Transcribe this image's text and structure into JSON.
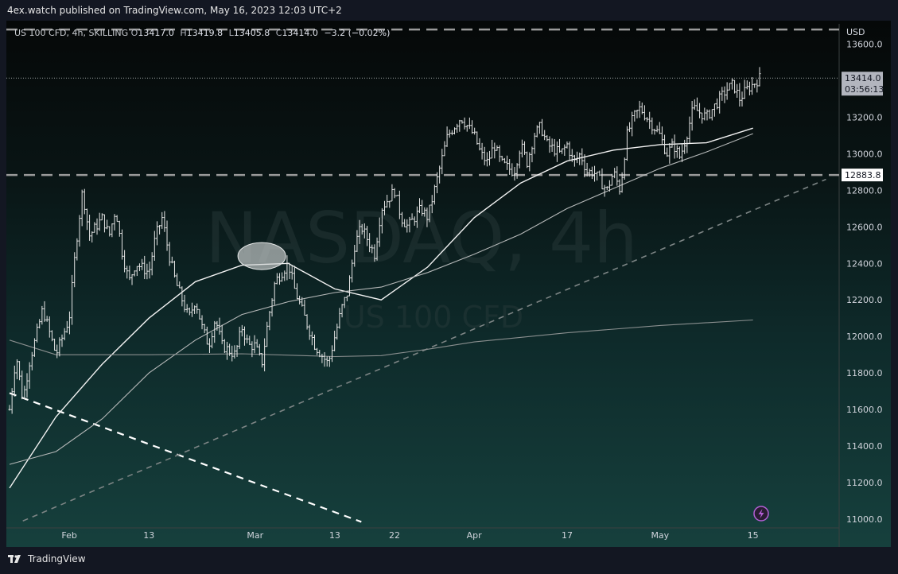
{
  "header": {
    "published": "4ex.watch published on TradingView.com, May 16, 2023 12:03 UTC+2"
  },
  "legend": {
    "symbol": "US 100 CFD, 4h, SKILLING",
    "o_label": "O",
    "o": "13417.0",
    "h_label": "H",
    "h": "13419.8",
    "l_label": "L",
    "l": "13405.8",
    "c_label": "C",
    "c": "13414.0",
    "change": "−3.2 (−0.02%)"
  },
  "watermark": {
    "line1": "NASDAQ, 4h",
    "line2": "US 100 CFD"
  },
  "footer": {
    "brand": "TradingView"
  },
  "colors": {
    "candle": "#e6e6e6",
    "ma_fast": "#f2f2f2",
    "ma_mid": "#b5b8b8",
    "ma_slow": "#8a8f8f",
    "level_line": "#9a9a9a",
    "last_price_label_bg": "#b2b5be",
    "level_label_bg": "#ffffff",
    "flash_icon": "#b45fd6"
  },
  "chart_data": {
    "type": "candlestick",
    "currency": "USD",
    "y_axis": {
      "ticks": [
        "13600.0",
        "13400.0",
        "13200.0",
        "13000.0",
        "12800.0",
        "12600.0",
        "12400.0",
        "12200.0",
        "12000.0",
        "11800.0",
        "11600.0",
        "11400.0",
        "11200.0",
        "11000.0"
      ],
      "range": [
        10990,
        13640
      ]
    },
    "x_axis": {
      "ticks": [
        "Feb",
        "13",
        "Mar",
        "13",
        "22",
        "Apr",
        "17",
        "May",
        "15"
      ]
    },
    "last_price": {
      "value": "13414.0",
      "countdown": "03:56:13"
    },
    "horizontal_levels": [
      {
        "label": "12883.8",
        "value": 12883.8,
        "style": "dashed"
      },
      {
        "label": "",
        "value": 13680,
        "style": "dashed"
      }
    ],
    "trendlines": [
      {
        "style": "dashed-white",
        "from": {
          "date": "2023-01-23",
          "value": 11690
        },
        "to": {
          "date": "2023-03-17",
          "value": 10985
        }
      },
      {
        "style": "dashed-gray",
        "from": {
          "date": "2023-01-25",
          "value": 10990
        },
        "to": {
          "date": "2023-05-26",
          "value": 12860
        }
      }
    ],
    "annotation": {
      "shape": "ellipse",
      "date": "2023-03-02",
      "value": 12440
    },
    "moving_averages": [
      {
        "style": "fast",
        "points": [
          [
            "2023-01-23",
            11170
          ],
          [
            "2023-01-30",
            11560
          ],
          [
            "2023-02-06",
            11850
          ],
          [
            "2023-02-13",
            12100
          ],
          [
            "2023-02-20",
            12300
          ],
          [
            "2023-02-27",
            12390
          ],
          [
            "2023-03-06",
            12400
          ],
          [
            "2023-03-13",
            12260
          ],
          [
            "2023-03-20",
            12200
          ],
          [
            "2023-03-27",
            12380
          ],
          [
            "2023-04-03",
            12650
          ],
          [
            "2023-04-10",
            12840
          ],
          [
            "2023-04-17",
            12960
          ],
          [
            "2023-04-24",
            13020
          ],
          [
            "2023-05-01",
            13050
          ],
          [
            "2023-05-08",
            13060
          ],
          [
            "2023-05-15",
            13140
          ]
        ]
      },
      {
        "style": "mid",
        "points": [
          [
            "2023-01-23",
            11300
          ],
          [
            "2023-01-30",
            11370
          ],
          [
            "2023-02-06",
            11550
          ],
          [
            "2023-02-13",
            11800
          ],
          [
            "2023-02-20",
            11980
          ],
          [
            "2023-02-27",
            12120
          ],
          [
            "2023-03-06",
            12190
          ],
          [
            "2023-03-13",
            12240
          ],
          [
            "2023-03-20",
            12270
          ],
          [
            "2023-03-27",
            12350
          ],
          [
            "2023-04-03",
            12450
          ],
          [
            "2023-04-10",
            12560
          ],
          [
            "2023-04-17",
            12700
          ],
          [
            "2023-04-24",
            12810
          ],
          [
            "2023-05-01",
            12920
          ],
          [
            "2023-05-08",
            13010
          ],
          [
            "2023-05-15",
            13110
          ]
        ]
      },
      {
        "style": "slow",
        "points": [
          [
            "2023-01-23",
            11980
          ],
          [
            "2023-01-30",
            11900
          ],
          [
            "2023-02-13",
            11900
          ],
          [
            "2023-02-27",
            11905
          ],
          [
            "2023-03-13",
            11890
          ],
          [
            "2023-03-20",
            11895
          ],
          [
            "2023-03-27",
            11930
          ],
          [
            "2023-04-03",
            11970
          ],
          [
            "2023-04-17",
            12020
          ],
          [
            "2023-05-01",
            12060
          ],
          [
            "2023-05-15",
            12090
          ]
        ]
      }
    ],
    "price_path": [
      [
        "2023-01-23",
        11600
      ],
      [
        "2023-01-24",
        11900
      ],
      [
        "2023-01-25",
        11650
      ],
      [
        "2023-01-26",
        11860
      ],
      [
        "2023-01-27",
        12000
      ],
      [
        "2023-01-28",
        12150
      ],
      [
        "2023-01-30",
        11900
      ],
      [
        "2023-01-31",
        12000
      ],
      [
        "2023-02-01",
        12100
      ],
      [
        "2023-02-02",
        12500
      ],
      [
        "2023-02-03",
        12800
      ],
      [
        "2023-02-04",
        12550
      ],
      [
        "2023-02-06",
        12650
      ],
      [
        "2023-02-07",
        12550
      ],
      [
        "2023-02-08",
        12700
      ],
      [
        "2023-02-09",
        12450
      ],
      [
        "2023-02-10",
        12300
      ],
      [
        "2023-02-11",
        12400
      ],
      [
        "2023-02-13",
        12350
      ],
      [
        "2023-02-14",
        12550
      ],
      [
        "2023-02-15",
        12650
      ],
      [
        "2023-02-16",
        12450
      ],
      [
        "2023-02-17",
        12300
      ],
      [
        "2023-02-19",
        12100
      ],
      [
        "2023-02-20",
        12200
      ],
      [
        "2023-02-21",
        12050
      ],
      [
        "2023-02-22",
        11950
      ],
      [
        "2023-02-23",
        12100
      ],
      [
        "2023-02-24",
        11950
      ],
      [
        "2023-02-26",
        11900
      ],
      [
        "2023-02-27",
        12050
      ],
      [
        "2023-02-28",
        11950
      ],
      [
        "2023-03-01",
        11950
      ],
      [
        "2023-03-02",
        11850
      ],
      [
        "2023-03-03",
        12100
      ],
      [
        "2023-03-04",
        12300
      ],
      [
        "2023-03-06",
        12400
      ],
      [
        "2023-03-07",
        12250
      ],
      [
        "2023-03-08",
        12150
      ],
      [
        "2023-03-09",
        12050
      ],
      [
        "2023-03-10",
        11950
      ],
      [
        "2023-03-12",
        11850
      ],
      [
        "2023-03-13",
        12000
      ],
      [
        "2023-03-14",
        12150
      ],
      [
        "2023-03-15",
        12250
      ],
      [
        "2023-03-16",
        12500
      ],
      [
        "2023-03-17",
        12600
      ],
      [
        "2023-03-19",
        12450
      ],
      [
        "2023-03-20",
        12700
      ],
      [
        "2023-03-21",
        12750
      ],
      [
        "2023-03-22",
        12800
      ],
      [
        "2023-03-23",
        12650
      ],
      [
        "2023-03-24",
        12600
      ],
      [
        "2023-03-26",
        12700
      ],
      [
        "2023-03-27",
        12650
      ],
      [
        "2023-03-28",
        12800
      ],
      [
        "2023-03-29",
        12950
      ],
      [
        "2023-03-30",
        13100
      ],
      [
        "2023-03-31",
        13150
      ],
      [
        "2023-04-01",
        13200
      ],
      [
        "2023-04-03",
        13100
      ],
      [
        "2023-04-04",
        13000
      ],
      [
        "2023-04-05",
        12950
      ],
      [
        "2023-04-06",
        13050
      ],
      [
        "2023-04-07",
        12950
      ],
      [
        "2023-04-09",
        12900
      ],
      [
        "2023-04-10",
        13050
      ],
      [
        "2023-04-11",
        12950
      ],
      [
        "2023-04-12",
        13100
      ],
      [
        "2023-04-13",
        13150
      ],
      [
        "2023-04-14",
        13050
      ],
      [
        "2023-04-16",
        13000
      ],
      [
        "2023-04-17",
        13050
      ],
      [
        "2023-04-18",
        12950
      ],
      [
        "2023-04-19",
        13000
      ],
      [
        "2023-04-20",
        12900
      ],
      [
        "2023-04-21",
        12900
      ],
      [
        "2023-04-23",
        12800
      ],
      [
        "2023-04-24",
        12900
      ],
      [
        "2023-04-25",
        12800
      ],
      [
        "2023-04-26",
        13100
      ],
      [
        "2023-04-27",
        13200
      ],
      [
        "2023-04-28",
        13250
      ],
      [
        "2023-04-30",
        13150
      ],
      [
        "2023-05-01",
        13100
      ],
      [
        "2023-05-02",
        13000
      ],
      [
        "2023-05-03",
        13050
      ],
      [
        "2023-05-04",
        12980
      ],
      [
        "2023-05-05",
        13100
      ],
      [
        "2023-05-06",
        13250
      ],
      [
        "2023-05-08",
        13200
      ],
      [
        "2023-05-09",
        13250
      ],
      [
        "2023-05-10",
        13300
      ],
      [
        "2023-05-11",
        13350
      ],
      [
        "2023-05-12",
        13380
      ],
      [
        "2023-05-13",
        13300
      ],
      [
        "2023-05-14",
        13350
      ],
      [
        "2023-05-15",
        13380
      ],
      [
        "2023-05-16",
        13414
      ]
    ]
  }
}
